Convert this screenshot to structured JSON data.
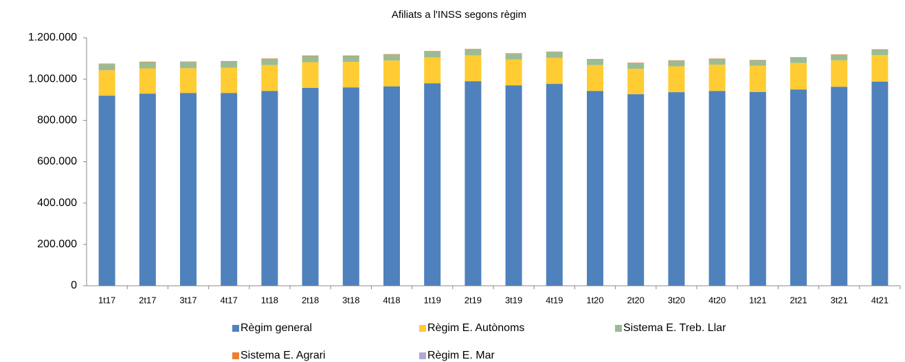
{
  "chart_data": {
    "type": "stacked_bar",
    "title": "Afiliats a l'INSS segons règim",
    "categories": [
      "1t17",
      "2t17",
      "3t17",
      "4t17",
      "1t18",
      "2t18",
      "3t18",
      "4t18",
      "1t19",
      "2t19",
      "3t19",
      "4t19",
      "1t20",
      "2t20",
      "3t20",
      "4t20",
      "1t21",
      "2t21",
      "3t21",
      "4t21"
    ],
    "series": [
      {
        "name": "Règim general",
        "color": "#4f81bd",
        "values": [
          920000,
          930000,
          933000,
          933000,
          943000,
          958000,
          960000,
          965000,
          980000,
          990000,
          970000,
          977000,
          943000,
          927000,
          937000,
          943000,
          938000,
          950000,
          963000,
          988000
        ]
      },
      {
        "name": "Règim E. Autònoms",
        "color": "#ffcc33",
        "values": [
          123000,
          122000,
          120000,
          122000,
          125000,
          124000,
          123000,
          125000,
          125000,
          125000,
          125000,
          126000,
          125000,
          123000,
          125000,
          127000,
          127000,
          128000,
          128000,
          128000
        ]
      },
      {
        "name": "Sistema E. Treb. Llar",
        "color": "#9bbb94",
        "values": [
          30000,
          30000,
          30000,
          30000,
          30000,
          30000,
          29000,
          29000,
          29000,
          29000,
          28000,
          28000,
          27000,
          27000,
          27000,
          27000,
          26000,
          26000,
          26000,
          26000
        ]
      },
      {
        "name": "Sistema E. Agrari",
        "color": "#ed7d31",
        "values": [
          2000,
          2000,
          2000,
          2000,
          2000,
          2000,
          2000,
          2000,
          2000,
          2000,
          2000,
          2000,
          2000,
          2000,
          2000,
          2000,
          2000,
          2000,
          2000,
          2000
        ]
      },
      {
        "name": "Règim E. Mar",
        "color": "#b4a7d6",
        "values": [
          500,
          500,
          500,
          500,
          500,
          500,
          500,
          500,
          500,
          500,
          500,
          500,
          500,
          500,
          500,
          500,
          500,
          500,
          500,
          500
        ]
      }
    ],
    "ylim": [
      0,
      1200000
    ],
    "yticks": [
      0,
      {
        "value": 200000,
        "label": "200.000"
      },
      {
        "value": 400000,
        "label": "400.000"
      },
      {
        "value": 600000,
        "label": "600.000"
      },
      {
        "value": 800000,
        "label": "800.000"
      },
      {
        "value": 1000000,
        "label": "1.000.000"
      },
      {
        "value": 1200000,
        "label": "1.200.000"
      }
    ]
  }
}
